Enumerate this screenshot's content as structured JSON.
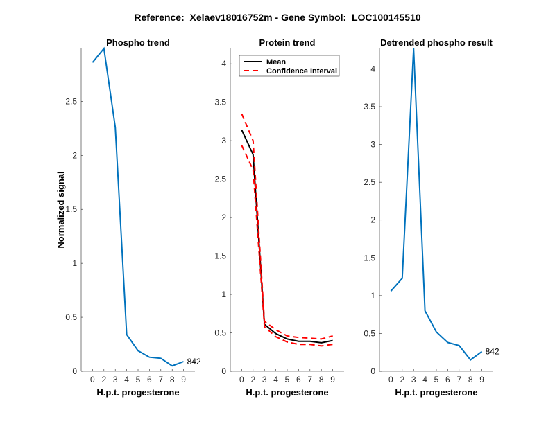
{
  "chart_data": [
    {
      "type": "line",
      "title": "Phospho trend",
      "xlabel": "H.p.t. progesterone",
      "ylabel": "Normalized signal",
      "categories": [
        "0",
        "2",
        "3",
        "4",
        "5",
        "6",
        "7",
        "8",
        "9"
      ],
      "ylim": [
        0,
        2.99
      ],
      "yticks": [
        0,
        0.5,
        1,
        1.5,
        2,
        2.5
      ],
      "series": [
        {
          "name": "phospho",
          "color": "#0072BD",
          "dash": false,
          "values": [
            2.86,
            2.99,
            2.26,
            0.34,
            0.19,
            0.13,
            0.12,
            0.05,
            0.09
          ]
        }
      ],
      "end_label": "842"
    },
    {
      "type": "line",
      "title": "Protein trend",
      "xlabel": "H.p.t. progesterone",
      "ylabel": "",
      "categories": [
        "0",
        "2",
        "3",
        "4",
        "5",
        "6",
        "7",
        "8",
        "9"
      ],
      "ylim": [
        0,
        4.2
      ],
      "yticks": [
        0,
        0.5,
        1,
        1.5,
        2,
        2.5,
        3,
        3.5,
        4
      ],
      "series": [
        {
          "name": "Mean",
          "color": "#000000",
          "dash": false,
          "values": [
            3.14,
            2.82,
            0.61,
            0.49,
            0.42,
            0.39,
            0.39,
            0.37,
            0.4
          ]
        },
        {
          "name": "Confidence Interval",
          "color": "#FF0000",
          "dash": true,
          "values": [
            3.35,
            3.0,
            0.65,
            0.54,
            0.46,
            0.44,
            0.43,
            0.42,
            0.46
          ]
        },
        {
          "name": "Confidence Interval (lower)",
          "color": "#FF0000",
          "dash": true,
          "values": [
            2.94,
            2.62,
            0.58,
            0.45,
            0.38,
            0.35,
            0.35,
            0.33,
            0.35
          ]
        }
      ],
      "legend": {
        "placement": "top-left",
        "entries": [
          "Mean",
          "Confidence Interval"
        ]
      }
    },
    {
      "type": "line",
      "title": "Detrended phospho result",
      "xlabel": "H.p.t. progesterone",
      "ylabel": "",
      "categories": [
        "0",
        "2",
        "3",
        "4",
        "5",
        "6",
        "7",
        "8",
        "9"
      ],
      "ylim": [
        0,
        4.27
      ],
      "yticks": [
        0,
        0.5,
        1,
        1.5,
        2,
        2.5,
        3,
        3.5,
        4
      ],
      "series": [
        {
          "name": "detrended",
          "color": "#0072BD",
          "dash": false,
          "values": [
            1.06,
            1.23,
            4.27,
            0.8,
            0.52,
            0.38,
            0.34,
            0.15,
            0.26
          ]
        }
      ],
      "end_label": "842"
    }
  ],
  "figure_title": "Reference:  Xelaev18016752m - Gene Symbol:  LOC100145510"
}
